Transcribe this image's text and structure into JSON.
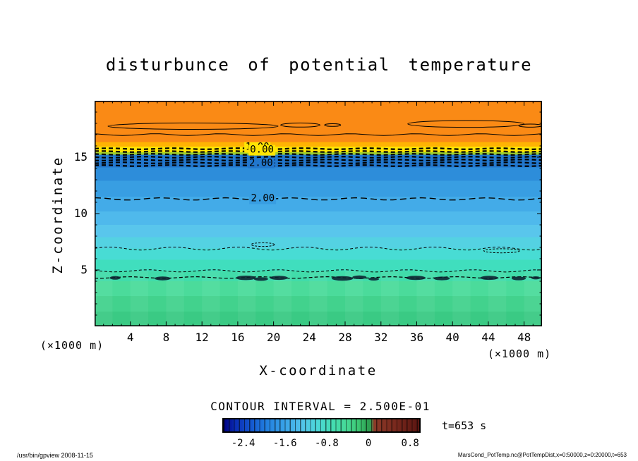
{
  "page": {
    "contour_interval_label": "CONTOUR INTERVAL = 2.500E-01",
    "time_label": "t=653 s",
    "footer_left": "/usr/bin/gpview  2008-11-15",
    "footer_right": "MarsCond_PotTemp.nc@PotTempDist,x=0:50000,z=0:20000,t=653"
  },
  "chart_data": {
    "type": "heatmap",
    "title": "disturbunce of potential temperature",
    "xlabel": "X-coordinate",
    "ylabel": "Z-coordinate",
    "x_unit_label": "(×1000 m)",
    "y_unit_label": "(×1000 m)",
    "xlim": [
      0,
      50
    ],
    "ylim": [
      0,
      20
    ],
    "x_major_ticks": [
      4,
      8,
      12,
      16,
      20,
      24,
      28,
      32,
      36,
      40,
      44,
      48
    ],
    "y_major_ticks": [
      5,
      10,
      15
    ],
    "x_minor_step": 1,
    "y_minor_step": 1,
    "contour_interval": 0.25,
    "time_seconds": 653,
    "colorbar": {
      "min": -2.8,
      "max": 1.0,
      "ticks": [
        {
          "value": -2.4,
          "label": "-2.4"
        },
        {
          "value": -1.6,
          "label": "-1.6"
        },
        {
          "value": -0.8,
          "label": "-0.8"
        },
        {
          "value": 0,
          "label": "0"
        },
        {
          "value": 0.8,
          "label": "0.8"
        }
      ],
      "stops": [
        {
          "at": 0.0,
          "c": "#000082"
        },
        {
          "at": 0.06,
          "c": "#0a2db4"
        },
        {
          "at": 0.14,
          "c": "#1457cf"
        },
        {
          "at": 0.22,
          "c": "#2280e0"
        },
        {
          "at": 0.31,
          "c": "#38a2e8"
        },
        {
          "at": 0.4,
          "c": "#52c2ea"
        },
        {
          "at": 0.48,
          "c": "#4cd8d8"
        },
        {
          "at": 0.56,
          "c": "#44dcb0"
        },
        {
          "at": 0.63,
          "c": "#46da96"
        },
        {
          "at": 0.69,
          "c": "#3cc873"
        },
        {
          "at": 0.735,
          "c": "#2da052"
        },
        {
          "at": 0.75,
          "c": "#2da052"
        },
        {
          "at": 0.77,
          "c": "#8a3a28"
        },
        {
          "at": 0.87,
          "c": "#7a2a1e"
        },
        {
          "at": 1.0,
          "c": "#5a1511"
        }
      ]
    },
    "bands": [
      {
        "z_top": 20,
        "z_bot": 16.35,
        "color": "#fa8a15"
      },
      {
        "z_top": 16.35,
        "z_bot": 15.95,
        "color": "#ffb303"
      },
      {
        "z_top": 15.95,
        "z_bot": 15.45,
        "color": "#ffe504"
      },
      {
        "z_top": 15.45,
        "z_bot": 15.22,
        "color": "#a0cf2c"
      },
      {
        "z_top": 15.22,
        "z_bot": 14.1,
        "color": "#2277cd"
      },
      {
        "z_top": 14.1,
        "z_bot": 12.9,
        "color": "#2d8dda"
      },
      {
        "z_top": 12.9,
        "z_bot": 11.5,
        "color": "#389ee2"
      },
      {
        "z_top": 11.5,
        "z_bot": 10.2,
        "color": "#43abe8"
      },
      {
        "z_top": 10.2,
        "z_bot": 9.0,
        "color": "#4fb9ec"
      },
      {
        "z_top": 9.0,
        "z_bot": 7.9,
        "color": "#59c6ec"
      },
      {
        "z_top": 7.9,
        "z_bot": 6.9,
        "color": "#54d2e2"
      },
      {
        "z_top": 6.9,
        "z_bot": 5.9,
        "color": "#48dcd4"
      },
      {
        "z_top": 5.9,
        "z_bot": 4.9,
        "color": "#40debe"
      },
      {
        "z_top": 4.9,
        "z_bot": 4.0,
        "color": "#41dcaa"
      },
      {
        "z_top": 4.0,
        "z_bot": 2.7,
        "color": "#4bdb9b"
      },
      {
        "z_top": 2.7,
        "z_bot": 1.3,
        "color": "#42d28d"
      },
      {
        "z_top": 1.3,
        "z_bot": 0,
        "color": "#3aca84"
      }
    ],
    "contours": {
      "lines": [
        {
          "z": 17.0,
          "w": 1,
          "amp": 0.08,
          "phase": 2.0
        },
        {
          "z": 15.75,
          "w": 2.2,
          "dash": "6 4",
          "amp": 0.05,
          "phase": 0.3
        },
        {
          "z": 15.5,
          "w": 2.2,
          "dash": "6 4",
          "amp": 0.05,
          "phase": 1.1
        },
        {
          "z": 15.25,
          "w": 2.2,
          "dash": "6 4",
          "amp": 0.05,
          "phase": 2.2
        },
        {
          "z": 15.0,
          "w": 2.2,
          "dash": "6 4",
          "amp": 0.05,
          "phase": 3.0
        },
        {
          "z": 14.75,
          "w": 2.2,
          "dash": "6 4",
          "amp": 0.05,
          "phase": 4.1
        },
        {
          "z": 14.5,
          "w": 2.2,
          "dash": "6 4",
          "amp": 0.05,
          "phase": 5.2
        },
        {
          "z": 14.25,
          "w": 2.2,
          "dash": "6 4",
          "amp": 0.05,
          "phase": 0.7
        },
        {
          "z": 11.3,
          "w": 1.4,
          "dash": "9 5",
          "amp": 0.1,
          "phase": 1.5
        },
        {
          "z": 6.9,
          "w": 1,
          "dash": "4 3",
          "amp": 0.14,
          "phase": 0.2
        },
        {
          "z": 4.92,
          "w": 1,
          "dash": "4 3",
          "amp": 0.1,
          "phase": 2.7
        },
        {
          "z": 4.33,
          "w": 1.2,
          "dash": "5 3",
          "amp": 0.07,
          "phase": 4.4
        }
      ],
      "ellipses": [
        {
          "x": 11,
          "z": 17.75,
          "rx": 9.5,
          "rz": 0.28
        },
        {
          "x": 23,
          "z": 17.85,
          "rx": 2.2,
          "rz": 0.18
        },
        {
          "x": 26.6,
          "z": 17.85,
          "rx": 0.9,
          "rz": 0.12
        },
        {
          "x": 41.5,
          "z": 17.95,
          "rx": 6.5,
          "rz": 0.3
        },
        {
          "x": 48.7,
          "z": 17.8,
          "rx": 1.3,
          "rz": 0.14
        },
        {
          "x": 18.8,
          "z": 7.25,
          "rx": 1.3,
          "rz": 0.16,
          "dash": "3 2"
        },
        {
          "x": 45.5,
          "z": 6.7,
          "rx": 2.0,
          "rz": 0.18,
          "dash": "3 2"
        }
      ],
      "labels": [
        {
          "text": "1.00",
          "x": 18.2,
          "z": 15.85,
          "bg": "#ffe504"
        },
        {
          "text": "0.00",
          "x": 18.7,
          "z": 15.62,
          "bg": "#ffe504"
        },
        {
          "text": "2.00",
          "x": 18.6,
          "z": 14.45,
          "bg": "#2277cd"
        },
        {
          "text": "2.00",
          "x": 18.8,
          "z": 11.3,
          "bg": "#389ee2"
        }
      ],
      "blobs": [
        {
          "x": 2.3,
          "z": 4.3,
          "rx": 0.6,
          "rz": 0.16
        },
        {
          "x": 7.6,
          "z": 4.25,
          "rx": 0.9,
          "rz": 0.17
        },
        {
          "x": 16.9,
          "z": 4.3,
          "rx": 1.1,
          "rz": 0.2
        },
        {
          "x": 18.6,
          "z": 4.2,
          "rx": 0.8,
          "rz": 0.16
        },
        {
          "x": 20.6,
          "z": 4.3,
          "rx": 1.0,
          "rz": 0.18
        },
        {
          "x": 27.7,
          "z": 4.25,
          "rx": 1.2,
          "rz": 0.2
        },
        {
          "x": 29.6,
          "z": 4.35,
          "rx": 0.8,
          "rz": 0.16
        },
        {
          "x": 31.2,
          "z": 4.2,
          "rx": 0.6,
          "rz": 0.14
        },
        {
          "x": 35.9,
          "z": 4.3,
          "rx": 1.1,
          "rz": 0.19
        },
        {
          "x": 38.8,
          "z": 4.25,
          "rx": 0.9,
          "rz": 0.16
        },
        {
          "x": 44.1,
          "z": 4.3,
          "rx": 1.0,
          "rz": 0.18
        },
        {
          "x": 47.4,
          "z": 4.25,
          "rx": 0.8,
          "rz": 0.16
        },
        {
          "x": 49.3,
          "z": 4.3,
          "rx": 0.5,
          "rz": 0.14
        }
      ]
    }
  }
}
